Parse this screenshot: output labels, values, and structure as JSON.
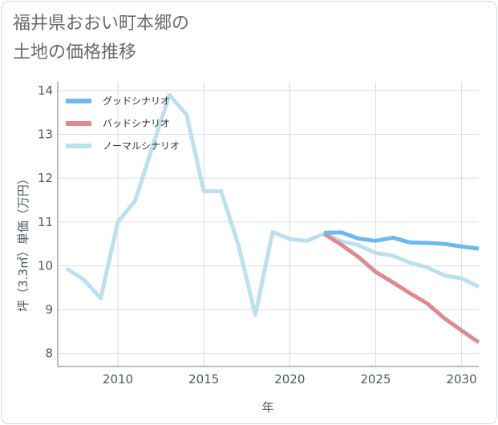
{
  "title": {
    "line1": "福井県おおい町本郷の",
    "line2": "土地の価格推移"
  },
  "chart_data": {
    "type": "line",
    "xlabel": "年",
    "ylabel": "坪（3.3㎡）単価（万円）",
    "xlim": [
      2006.5,
      2031
    ],
    "ylim": [
      7.7,
      14.2
    ],
    "xticks": [
      2010,
      2015,
      2020,
      2025,
      2030
    ],
    "yticks": [
      8,
      9,
      10,
      11,
      12,
      13,
      14
    ],
    "grid": true,
    "legend_position": "top-left",
    "series": [
      {
        "name": "グッドシナリオ",
        "color": "#6cb8f0",
        "x": [
          2022,
          2023,
          2024,
          2025,
          2026,
          2027,
          2028,
          2029,
          2030,
          2031
        ],
        "values": [
          10.75,
          10.76,
          10.62,
          10.57,
          10.64,
          10.53,
          10.52,
          10.5,
          10.44,
          10.39
        ]
      },
      {
        "name": "バッドシナリオ",
        "color": "#e08a90",
        "x": [
          2022,
          2023,
          2024,
          2025,
          2026,
          2027,
          2028,
          2029,
          2030,
          2031
        ],
        "values": [
          10.73,
          10.48,
          10.2,
          9.86,
          9.62,
          9.37,
          9.14,
          8.8,
          8.52,
          8.25
        ]
      },
      {
        "name": "ノーマルシナリオ",
        "color": "#bde0ee",
        "x": [
          2007,
          2008,
          2009,
          2010,
          2011,
          2012,
          2013,
          2014,
          2015,
          2016,
          2017,
          2018,
          2019,
          2020,
          2021,
          2022,
          2023,
          2024,
          2025,
          2026,
          2027,
          2028,
          2029,
          2030,
          2031
        ],
        "values": [
          9.94,
          9.69,
          9.26,
          11.0,
          11.48,
          12.7,
          13.9,
          13.45,
          11.7,
          11.7,
          10.5,
          8.88,
          10.77,
          10.61,
          10.57,
          10.73,
          10.56,
          10.47,
          10.29,
          10.23,
          10.07,
          9.96,
          9.78,
          9.71,
          9.52
        ]
      }
    ]
  }
}
